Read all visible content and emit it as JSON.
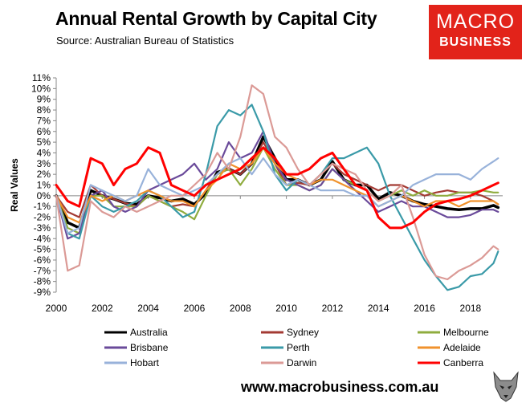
{
  "header": {
    "title": "Annual Rental Growth by Capital City",
    "subtitle": "Source: Australian Bureau of Statistics"
  },
  "logo": {
    "line1": "MACRO",
    "line2": "BUSINESS"
  },
  "footer": {
    "url": "www.macrobusiness.com.au"
  },
  "colors": {
    "Australia": "#000000",
    "Sydney": "#a33a33",
    "Melbourne": "#8fac3e",
    "Brisbane": "#6a4a9a",
    "Perth": "#3a9aa8",
    "Adelaide": "#f0922c",
    "Hobart": "#98b2da",
    "Darwin": "#db9a96",
    "Canberra": "#ff0000",
    "logo_bg": "#e2231a"
  },
  "chart_data": {
    "type": "line",
    "title": "Annual Rental Growth by Capital City",
    "ylabel": "Real Values",
    "xlabel": "",
    "xlim": [
      2000,
      2019.4
    ],
    "ylim": [
      -9,
      11
    ],
    "x_ticks": [
      "2000",
      "2002",
      "2004",
      "2006",
      "2008",
      "2010",
      "2012",
      "2014",
      "2016",
      "2018"
    ],
    "y_ticks": [
      "11%",
      "10%",
      "9%",
      "8%",
      "7%",
      "6%",
      "5%",
      "4%",
      "3%",
      "2%",
      "1%",
      "0%",
      "-1%",
      "-2%",
      "-3%",
      "-4%",
      "-5%",
      "-6%",
      "-7%",
      "-8%",
      "-9%"
    ],
    "grid": false,
    "legend_position": "bottom",
    "series": [
      {
        "name": "Australia",
        "x": [
          2000,
          2000.5,
          2001,
          2001.5,
          2002,
          2002.5,
          2003,
          2003.5,
          2004,
          2004.5,
          2005,
          2005.5,
          2006,
          2006.5,
          2007,
          2007.5,
          2008,
          2008.5,
          2009,
          2009.5,
          2010,
          2010.5,
          2011,
          2011.5,
          2012,
          2012.5,
          2013,
          2013.5,
          2014,
          2014.5,
          2015,
          2015.5,
          2016,
          2016.5,
          2017,
          2017.5,
          2018,
          2018.5,
          2019,
          2019.2
        ],
        "y": [
          0,
          -2.5,
          -3,
          0.5,
          0,
          -0.3,
          -0.7,
          -0.8,
          0,
          -0.2,
          -0.5,
          -0.3,
          -0.8,
          0.2,
          2.2,
          2.5,
          2,
          3,
          5.5,
          3.5,
          1.5,
          1.5,
          1,
          1.5,
          3.2,
          1.5,
          1,
          1,
          -0.3,
          0.3,
          0,
          -0.5,
          -0.8,
          -1,
          -1.2,
          -1.3,
          -1.2,
          -1.2,
          -0.9,
          -1.1
        ]
      },
      {
        "name": "Sydney",
        "x": [
          2000,
          2000.5,
          2001,
          2001.5,
          2002,
          2002.5,
          2003,
          2003.5,
          2004,
          2004.5,
          2005,
          2005.5,
          2006,
          2006.5,
          2007,
          2007.5,
          2008,
          2008.5,
          2009,
          2009.5,
          2010,
          2010.5,
          2011,
          2011.5,
          2012,
          2012.5,
          2013,
          2013.5,
          2014,
          2014.5,
          2015,
          2015.5,
          2016,
          2016.5,
          2017,
          2017.5,
          2018,
          2018.5,
          2019,
          2019.2
        ],
        "y": [
          0,
          -1.5,
          -2,
          1,
          0,
          -0.3,
          -0.7,
          -1,
          0,
          -0.5,
          -1,
          -0.8,
          -1,
          0.5,
          2,
          2.5,
          2,
          3,
          5,
          3,
          1,
          1.2,
          1,
          2,
          3,
          2,
          1.5,
          1,
          0.5,
          1,
          1,
          0.5,
          0,
          0.3,
          0.5,
          0.3,
          0.3,
          0,
          -0.5,
          -0.8
        ]
      },
      {
        "name": "Melbourne",
        "x": [
          2000,
          2000.5,
          2001,
          2001.5,
          2002,
          2002.5,
          2003,
          2003.5,
          2004,
          2004.5,
          2005,
          2005.5,
          2006,
          2006.5,
          2007,
          2007.5,
          2008,
          2008.5,
          2009,
          2009.5,
          2010,
          2010.5,
          2011,
          2011.5,
          2012,
          2012.5,
          2013,
          2013.5,
          2014,
          2014.5,
          2015,
          2015.5,
          2016,
          2016.5,
          2017,
          2017.5,
          2018,
          2018.5,
          2019,
          2019.2
        ],
        "y": [
          0,
          -3,
          -3.5,
          0,
          0,
          -1,
          -1,
          -1,
          0,
          -0.5,
          -1,
          -1.5,
          -2.2,
          0,
          2,
          2.5,
          1,
          2.5,
          4.5,
          2.5,
          1,
          1,
          0.5,
          1,
          2.5,
          1.5,
          1,
          0.5,
          -0.5,
          0,
          0.5,
          0,
          0.5,
          0,
          0,
          0.3,
          0.3,
          0.5,
          0.3,
          0.3
        ]
      },
      {
        "name": "Brisbane",
        "x": [
          2000,
          2000.5,
          2001,
          2001.5,
          2002,
          2002.5,
          2003,
          2003.5,
          2004,
          2004.5,
          2005,
          2005.5,
          2006,
          2006.5,
          2007,
          2007.5,
          2008,
          2008.5,
          2009,
          2009.5,
          2010,
          2010.5,
          2011,
          2011.5,
          2012,
          2012.5,
          2013,
          2013.5,
          2014,
          2014.5,
          2015,
          2015.5,
          2016,
          2016.5,
          2017,
          2017.5,
          2018,
          2018.5,
          2019,
          2019.2
        ],
        "y": [
          0,
          -4,
          -3.5,
          0,
          0.5,
          -1,
          -1.5,
          -1,
          0.5,
          1,
          1.5,
          2,
          3,
          1.5,
          2.5,
          5,
          3.5,
          4,
          6,
          3,
          1.5,
          1,
          0.5,
          1,
          2.5,
          1.5,
          0.5,
          -0.5,
          -1.5,
          -1,
          -0.5,
          -1,
          -1,
          -1.5,
          -2,
          -2,
          -1.8,
          -1.3,
          -1.3,
          -1.5
        ]
      },
      {
        "name": "Perth",
        "x": [
          2000,
          2000.5,
          2001,
          2001.5,
          2002,
          2002.5,
          2003,
          2003.5,
          2004,
          2004.5,
          2005,
          2005.5,
          2006,
          2006.5,
          2007,
          2007.5,
          2008,
          2008.5,
          2009,
          2009.5,
          2010,
          2010.5,
          2011,
          2011.5,
          2012,
          2012.5,
          2013,
          2013.5,
          2014,
          2014.5,
          2015,
          2015.5,
          2016,
          2016.5,
          2017,
          2017.5,
          2018,
          2018.5,
          2019,
          2019.2
        ],
        "y": [
          0,
          -3.5,
          -4,
          0,
          -1,
          -1.5,
          -1,
          -0.5,
          0.5,
          0,
          -1,
          -2,
          -1.5,
          2,
          6.5,
          8,
          7.5,
          8.5,
          6,
          2,
          0.5,
          1.5,
          1,
          2,
          3.5,
          3.5,
          4,
          4.5,
          3,
          0,
          -2,
          -4,
          -6,
          -7.5,
          -8.8,
          -8.5,
          -7.5,
          -7.3,
          -6.3,
          -5.2
        ]
      },
      {
        "name": "Adelaide",
        "x": [
          2000,
          2000.5,
          2001,
          2001.5,
          2002,
          2002.5,
          2003,
          2003.5,
          2004,
          2004.5,
          2005,
          2005.5,
          2006,
          2006.5,
          2007,
          2007.5,
          2008,
          2008.5,
          2009,
          2009.5,
          2010,
          2010.5,
          2011,
          2011.5,
          2012,
          2012.5,
          2013,
          2013.5,
          2014,
          2014.5,
          2015,
          2015.5,
          2016,
          2016.5,
          2017,
          2017.5,
          2018,
          2018.5,
          2019,
          2019.2
        ],
        "y": [
          0,
          -2,
          -2.5,
          0,
          -0.5,
          0,
          -0.5,
          0,
          0.5,
          0,
          -0.5,
          -0.5,
          -1,
          0.5,
          1.5,
          3,
          2.5,
          3,
          4.5,
          3,
          2,
          1.5,
          1,
          1.5,
          1.5,
          1,
          0.5,
          0,
          -1,
          -0.5,
          0,
          -0.5,
          -1,
          -0.5,
          -0.5,
          -1,
          -0.5,
          -0.5,
          -0.5,
          -0.8
        ]
      },
      {
        "name": "Hobart",
        "x": [
          2000,
          2000.5,
          2001,
          2001.5,
          2002,
          2002.5,
          2003,
          2003.5,
          2004,
          2004.5,
          2005,
          2005.5,
          2006,
          2006.5,
          2007,
          2007.5,
          2008,
          2008.5,
          2009,
          2009.5,
          2010,
          2010.5,
          2011,
          2011.5,
          2012,
          2012.5,
          2013,
          2013.5,
          2014,
          2014.5,
          2015,
          2015.5,
          2016,
          2016.5,
          2017,
          2017.5,
          2018,
          2018.5,
          2019,
          2019.2
        ],
        "y": [
          0,
          -3.5,
          -3,
          1,
          0.5,
          0,
          -0.5,
          0,
          2.5,
          1,
          0.5,
          0,
          0.5,
          1,
          2,
          3,
          3.5,
          2,
          3.5,
          2,
          1,
          1.5,
          1,
          0.5,
          0.5,
          0.5,
          0,
          0,
          -1,
          -0.5,
          0,
          1,
          1.5,
          2,
          2,
          2,
          1.5,
          2.5,
          3.2,
          3.5
        ]
      },
      {
        "name": "Darwin",
        "x": [
          2000,
          2000.5,
          2001,
          2001.5,
          2002,
          2002.5,
          2003,
          2003.5,
          2004,
          2004.5,
          2005,
          2005.5,
          2006,
          2006.5,
          2007,
          2007.5,
          2008,
          2008.5,
          2009,
          2009.5,
          2010,
          2010.5,
          2011,
          2011.5,
          2012,
          2012.5,
          2013,
          2013.5,
          2014,
          2014.5,
          2015,
          2015.5,
          2016,
          2016.5,
          2017,
          2017.5,
          2018,
          2018.5,
          2019,
          2019.2
        ],
        "y": [
          0,
          -7,
          -6.5,
          -0.5,
          -1.5,
          -2,
          -1,
          -1.5,
          -1,
          -0.5,
          0,
          0,
          1,
          2,
          4,
          2.5,
          5.5,
          10.3,
          9.5,
          5.5,
          4.5,
          2.5,
          1,
          2,
          3,
          2.5,
          2,
          0.5,
          -0.5,
          0,
          1,
          -2,
          -5.5,
          -7.5,
          -7.8,
          -7,
          -6.5,
          -5.8,
          -4.7,
          -5
        ]
      },
      {
        "name": "Canberra",
        "x": [
          2000,
          2000.5,
          2001,
          2001.5,
          2002,
          2002.5,
          2003,
          2003.5,
          2004,
          2004.5,
          2005,
          2005.5,
          2006,
          2006.5,
          2007,
          2007.5,
          2008,
          2008.5,
          2009,
          2009.5,
          2010,
          2010.5,
          2011,
          2011.5,
          2012,
          2012.5,
          2013,
          2013.5,
          2014,
          2014.5,
          2015,
          2015.5,
          2016,
          2016.5,
          2017,
          2017.5,
          2018,
          2018.5,
          2019,
          2019.2
        ],
        "y": [
          1,
          -0.5,
          -1,
          3.5,
          3,
          1,
          2.5,
          3,
          4.5,
          4,
          1,
          0.5,
          0,
          1,
          1.5,
          2,
          2.5,
          3.5,
          4.5,
          3.5,
          2,
          2,
          2.5,
          3.5,
          4,
          2.5,
          1,
          0.5,
          -2,
          -3,
          -3,
          -2.5,
          -1.5,
          -0.8,
          -0.5,
          -0.3,
          0,
          0.5,
          1,
          1.2
        ]
      }
    ]
  }
}
